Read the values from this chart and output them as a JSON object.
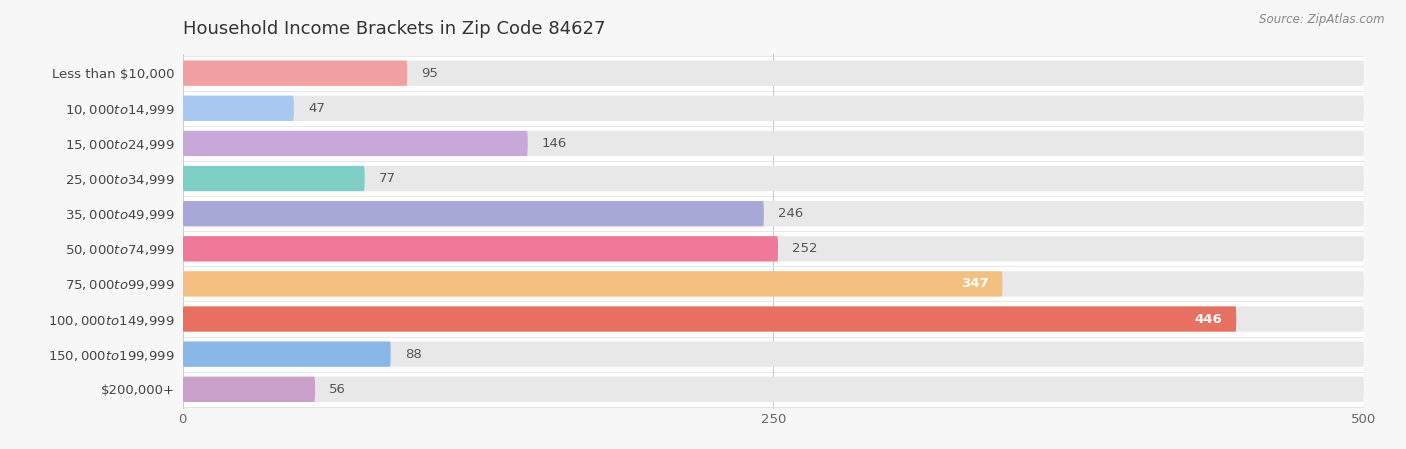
{
  "title": "Household Income Brackets in Zip Code 84627",
  "source": "Source: ZipAtlas.com",
  "categories": [
    "Less than $10,000",
    "$10,000 to $14,999",
    "$15,000 to $24,999",
    "$25,000 to $34,999",
    "$35,000 to $49,999",
    "$50,000 to $74,999",
    "$75,000 to $99,999",
    "$100,000 to $149,999",
    "$150,000 to $199,999",
    "$200,000+"
  ],
  "values": [
    95,
    47,
    146,
    77,
    246,
    252,
    347,
    446,
    88,
    56
  ],
  "bar_colors": [
    "#F2A0A0",
    "#A8C8F0",
    "#C8A8D8",
    "#7ECEC8",
    "#A8A8D8",
    "#F07898",
    "#F4C080",
    "#E87060",
    "#88B8E8",
    "#C8A0C8"
  ],
  "xlim": [
    0,
    500
  ],
  "xticks": [
    0,
    250,
    500
  ],
  "background_color": "#f7f7f7",
  "bar_bg_color": "#e8e8e8",
  "title_fontsize": 13,
  "label_fontsize": 9.5,
  "value_fontsize": 9.5
}
